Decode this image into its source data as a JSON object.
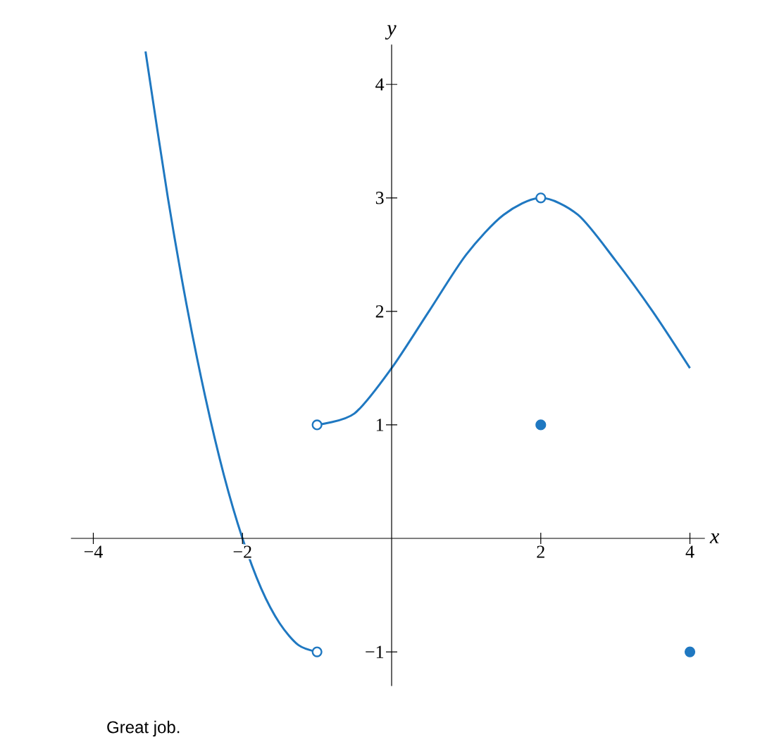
{
  "chart_data": {
    "type": "line",
    "xlabel": "x",
    "ylabel": "y",
    "xlim": [
      -4.3,
      4.2
    ],
    "ylim": [
      -1.3,
      4.35
    ],
    "xticks": [
      {
        "value": -4,
        "label": "−4"
      },
      {
        "value": -2,
        "label": "−2"
      },
      2,
      4
    ],
    "yticks": [
      {
        "value": -1,
        "label": "−1"
      },
      1,
      2,
      3,
      4
    ],
    "marker": "circle",
    "series": [
      {
        "marker": "none",
        "color": "#1f78c1",
        "x": [
          -3.3,
          -3,
          -2.75,
          -2.5,
          -2.25,
          -2,
          -1.75,
          -1.5,
          -1.25,
          -1
        ],
        "values": [
          4.29,
          3,
          2.06,
          1.25,
          0.56,
          0,
          -0.44,
          -0.75,
          -0.94,
          -1
        ]
      },
      {
        "marker": "none",
        "color": "#1f78c1",
        "x": [
          -1,
          -0.5,
          0,
          0.5,
          1,
          1.5,
          2,
          2.5,
          3,
          3.5,
          4
        ],
        "values": [
          1,
          1.1,
          1.5,
          2.0,
          2.5,
          2.85,
          3,
          2.85,
          2.45,
          2.0,
          1.5
        ]
      },
      {
        "type": "scatter",
        "color": "#ffffff",
        "x": [
          -1,
          -1,
          2
        ],
        "values": [
          -1,
          1,
          3
        ]
      },
      {
        "type": "scatter",
        "color": "#1f78c1",
        "x": [
          2,
          4
        ],
        "values": [
          1,
          -1
        ]
      }
    ],
    "annotations": [
      "Great job."
    ]
  }
}
